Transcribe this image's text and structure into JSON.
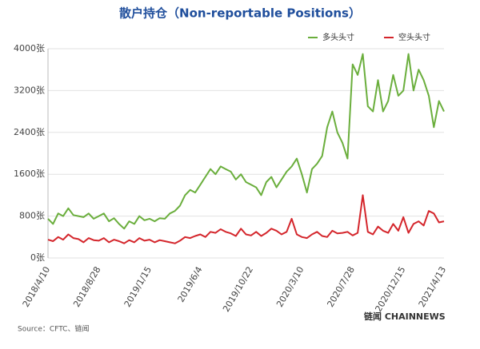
{
  "chart_data": {
    "type": "line",
    "title": "散户持仓（Non-reportable Positions）",
    "source": "Source：CFTC、链闻",
    "brand": "链闻 CHAINNEWS",
    "categories": [
      "2018/4/10",
      null,
      null,
      null,
      null,
      null,
      null,
      null,
      null,
      null,
      "2018/8/28",
      null,
      null,
      null,
      null,
      null,
      null,
      null,
      null,
      null,
      "2019/1/15",
      null,
      null,
      null,
      null,
      null,
      null,
      null,
      null,
      null,
      "2019/6/4",
      null,
      null,
      null,
      null,
      null,
      null,
      null,
      null,
      null,
      "2019/10/22",
      null,
      null,
      null,
      null,
      null,
      null,
      null,
      null,
      null,
      "2020/3/10",
      null,
      null,
      null,
      null,
      null,
      null,
      null,
      null,
      null,
      "2020/7/28",
      null,
      null,
      null,
      null,
      null,
      null,
      null,
      null,
      null,
      "2020/12/15",
      null,
      null,
      null,
      null,
      null,
      null,
      null,
      "2021/4/13"
    ],
    "series": [
      {
        "name": "多头头寸",
        "color": "#6aae3c",
        "values": [
          750,
          650,
          850,
          800,
          950,
          820,
          800,
          780,
          850,
          750,
          800,
          850,
          700,
          760,
          650,
          560,
          700,
          650,
          800,
          720,
          750,
          700,
          760,
          750,
          850,
          900,
          1000,
          1200,
          1300,
          1250,
          1400,
          1550,
          1700,
          1600,
          1750,
          1700,
          1650,
          1500,
          1600,
          1450,
          1400,
          1350,
          1200,
          1450,
          1550,
          1350,
          1500,
          1650,
          1750,
          1900,
          1600,
          1250,
          1700,
          1800,
          1950,
          2500,
          2800,
          2400,
          2200,
          1900,
          3700,
          3500,
          3900,
          2900,
          2800,
          3400,
          2800,
          3000,
          3500,
          3100,
          3200,
          3900,
          3200,
          3600,
          3400,
          3100,
          2500,
          3000,
          2800
        ]
      },
      {
        "name": "空头头寸",
        "color": "#d4252b",
        "values": [
          350,
          320,
          400,
          350,
          450,
          380,
          360,
          300,
          380,
          340,
          330,
          380,
          300,
          350,
          320,
          280,
          340,
          300,
          380,
          330,
          350,
          300,
          340,
          320,
          300,
          280,
          330,
          400,
          380,
          420,
          450,
          400,
          500,
          480,
          550,
          500,
          470,
          420,
          560,
          450,
          430,
          500,
          420,
          480,
          560,
          520,
          450,
          500,
          750,
          450,
          400,
          380,
          450,
          500,
          420,
          400,
          520,
          470,
          480,
          500,
          430,
          480,
          1200,
          500,
          450,
          600,
          520,
          480,
          650,
          520,
          780,
          480,
          650,
          700,
          620,
          900,
          850,
          680,
          700
        ]
      }
    ],
    "ylim": [
      0,
      4000
    ],
    "yticks": [
      {
        "value": 0,
        "label": "0张"
      },
      {
        "value": 800,
        "label": "800张"
      },
      {
        "value": 1600,
        "label": "1600张"
      },
      {
        "value": 2400,
        "label": "2400张"
      },
      {
        "value": 3200,
        "label": "3200张"
      },
      {
        "value": 4000,
        "label": "4000张"
      }
    ],
    "grid": true
  }
}
